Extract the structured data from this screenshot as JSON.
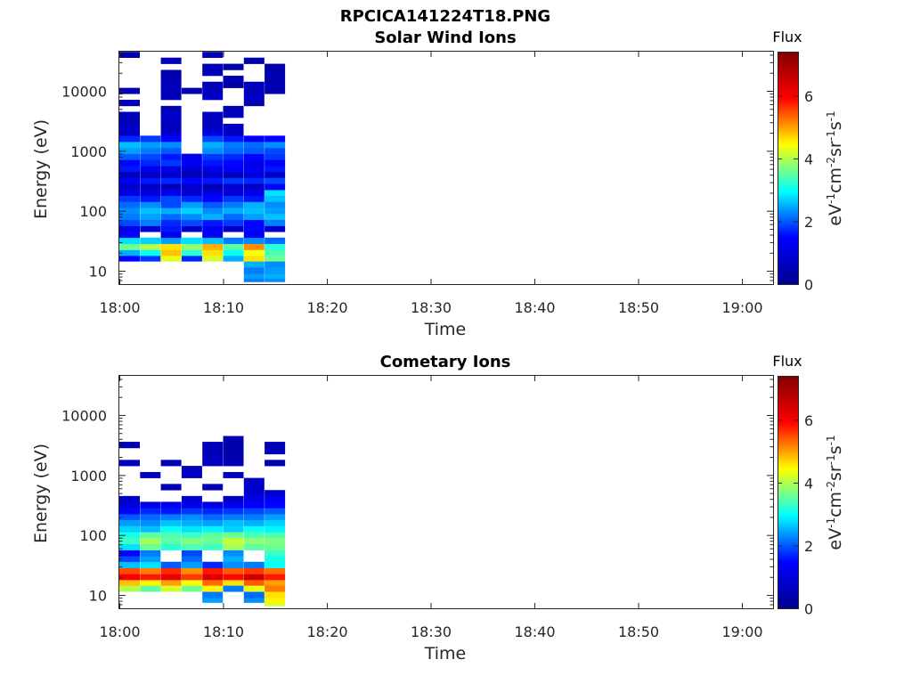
{
  "figure_title": "RPCICA141224T18.PNG",
  "colors": {
    "jet_stops": [
      "#00008f",
      "#0000ff",
      "#00ffff",
      "#ffff00",
      "#ff0000",
      "#800000"
    ]
  },
  "chart_data": [
    {
      "type": "heatmap",
      "title": "Solar Wind Ions",
      "xlabel": "Time",
      "ylabel": "Energy (eV)",
      "x_range": [
        "18:00",
        "19:03"
      ],
      "x_ticks": [
        "18:00",
        "18:10",
        "18:20",
        "18:30",
        "18:40",
        "18:50",
        "19:00"
      ],
      "y_scale": "log",
      "y_range": [
        6,
        45000
      ],
      "y_ticks": [
        10,
        100,
        1000,
        10000
      ],
      "y_tick_labels": [
        "10",
        "100",
        "1000",
        "10000"
      ],
      "colorbar": {
        "title": "Flux",
        "label": "eV-1cm-2sr-1s-1",
        "range": [
          0,
          7.4
        ],
        "ticks": [
          0,
          2,
          4,
          6
        ],
        "tick_labels": [
          "0",
          "2",
          "4",
          "6"
        ]
      },
      "time_columns": [
        "18:00",
        "18:02",
        "18:04",
        "18:06",
        "18:08",
        "18:10",
        "18:12",
        "18:14"
      ],
      "energy_bins": [
        7,
        8,
        10,
        13,
        16,
        20,
        25,
        32,
        40,
        50,
        63,
        80,
        100,
        126,
        160,
        200,
        250,
        320,
        400,
        500,
        630,
        800,
        1000,
        1260,
        1600,
        2000,
        2500,
        3200,
        4000,
        5000,
        6300,
        8000,
        10000,
        12600,
        16000,
        20000,
        25000,
        32000,
        40000
      ],
      "flux_grid": [
        [
          0,
          0,
          0,
          0,
          0,
          0,
          2.2,
          2.3
        ],
        [
          0,
          0,
          0,
          0,
          0,
          0,
          2.4,
          2.5
        ],
        [
          0,
          0,
          0,
          0,
          0,
          0,
          2.2,
          2.4
        ],
        [
          0,
          0,
          0,
          0,
          0,
          0,
          2.5,
          2.3
        ],
        [
          1.5,
          1.8,
          4.3,
          1.7,
          4.2,
          2.5,
          4.6,
          3.6
        ],
        [
          2.5,
          3.0,
          4.8,
          3.2,
          4.6,
          3.0,
          4.4,
          3.4
        ],
        [
          3.6,
          4.0,
          4.6,
          3.8,
          4.9,
          3.5,
          5.1,
          3.2
        ],
        [
          2.8,
          2.7,
          2.4,
          2.8,
          2.6,
          2.2,
          2.3,
          2.1
        ],
        [
          1.5,
          0,
          1.2,
          0,
          1.3,
          0,
          1.4,
          0
        ],
        [
          1.3,
          0.9,
          1.6,
          0.8,
          1.4,
          0.7,
          1.5,
          0.8
        ],
        [
          1.9,
          2.2,
          1.7,
          1.9,
          1.6,
          1.8,
          1.5,
          2.2
        ],
        [
          2.2,
          2.4,
          2.1,
          2.3,
          2.5,
          2.1,
          2.4,
          2.6
        ],
        [
          2.3,
          2.6,
          2.5,
          2.7,
          2.3,
          2.5,
          2.6,
          2.4
        ],
        [
          2.1,
          2.3,
          1.9,
          2.4,
          2.0,
          2.2,
          2.5,
          2.3
        ],
        [
          1.8,
          1.6,
          1.9,
          1.7,
          1.5,
          1.8,
          1.6,
          2.6
        ],
        [
          1.2,
          1.0,
          1.3,
          0.9,
          1.1,
          1.0,
          1.2,
          2.8
        ],
        [
          0.8,
          0.7,
          0.6,
          0.8,
          0.5,
          0.9,
          0.7,
          1.5
        ],
        [
          1.4,
          1.6,
          1.7,
          1.5,
          1.6,
          1.8,
          1.7,
          1.9
        ],
        [
          0.6,
          0.7,
          0.9,
          0.5,
          0.8,
          0.6,
          1.0,
          0.7
        ],
        [
          1.6,
          1.3,
          1.1,
          0.9,
          1.2,
          1.4,
          1.3,
          1.6
        ],
        [
          1.5,
          1.7,
          1.8,
          1.4,
          1.6,
          1.5,
          1.2,
          1.4
        ],
        [
          2.0,
          1.9,
          1.6,
          1.2,
          1.8,
          1.7,
          1.5,
          1.8
        ],
        [
          2.4,
          2.2,
          2.0,
          0,
          2.3,
          2.1,
          2.0,
          1.9
        ],
        [
          2.6,
          2.4,
          2.3,
          0,
          2.5,
          2.2,
          2.1,
          2.3
        ],
        [
          1.7,
          1.8,
          1.5,
          0,
          1.9,
          1.6,
          1.4,
          1.5
        ],
        [
          0.8,
          0,
          0.9,
          0,
          1.1,
          0.7,
          0,
          0
        ],
        [
          0.7,
          0,
          0.6,
          0,
          0.7,
          0.8,
          0,
          0
        ],
        [
          0.5,
          0,
          0.7,
          0,
          0.6,
          0,
          0,
          0
        ],
        [
          0.6,
          0,
          0.8,
          0,
          0.7,
          0.6,
          0,
          0
        ],
        [
          0,
          0,
          0.5,
          0,
          0,
          0.5,
          0,
          0
        ],
        [
          0.6,
          0,
          0,
          0,
          0,
          0,
          0.4,
          0
        ],
        [
          0,
          0,
          0.6,
          0,
          0.7,
          0,
          0.8,
          0
        ],
        [
          0.5,
          0,
          0.5,
          0.4,
          0.6,
          0,
          0.5,
          0.4
        ],
        [
          0,
          0,
          0.6,
          0,
          0.5,
          0.3,
          0.6,
          0.5
        ],
        [
          0,
          0,
          0.5,
          0,
          0,
          0.5,
          0,
          0.4
        ],
        [
          0,
          0,
          0.4,
          0,
          0.6,
          0,
          0,
          0.5
        ],
        [
          0,
          0,
          0,
          0,
          0.5,
          0.4,
          0,
          0.3
        ],
        [
          0,
          0,
          0.5,
          0,
          0,
          0,
          0.4,
          0
        ],
        [
          0.4,
          0,
          0,
          0,
          0.5,
          0,
          0,
          0
        ]
      ]
    },
    {
      "type": "heatmap",
      "title": "Cometary Ions",
      "xlabel": "Time",
      "ylabel": "Energy (eV)",
      "x_range": [
        "18:00",
        "19:03"
      ],
      "x_ticks": [
        "18:00",
        "18:10",
        "18:20",
        "18:30",
        "18:40",
        "18:50",
        "19:00"
      ],
      "y_scale": "log",
      "y_range": [
        6,
        45000
      ],
      "y_ticks": [
        10,
        100,
        1000,
        10000
      ],
      "y_tick_labels": [
        "10",
        "100",
        "1000",
        "10000"
      ],
      "colorbar": {
        "title": "Flux",
        "label": "eV-1cm-2sr-1s-1",
        "range": [
          0,
          7.4
        ],
        "ticks": [
          0,
          2,
          4,
          6
        ],
        "tick_labels": [
          "0",
          "2",
          "4",
          "6"
        ]
      },
      "time_columns": [
        "18:00",
        "18:02",
        "18:04",
        "18:06",
        "18:08",
        "18:10",
        "18:12",
        "18:14"
      ],
      "energy_bins": [
        7,
        8,
        10,
        13,
        16,
        20,
        25,
        32,
        40,
        50,
        63,
        80,
        100,
        126,
        160,
        200,
        250,
        320,
        400,
        500,
        630,
        800,
        1000,
        1260,
        1600,
        2000,
        2500,
        3200,
        4000,
        5000,
        6300,
        8000,
        10000,
        12600,
        16000,
        20000,
        25000,
        32000,
        40000
      ],
      "flux_grid": [
        [
          0,
          0,
          0,
          0,
          0,
          0,
          0,
          4.2
        ],
        [
          0,
          0,
          0,
          0,
          2.4,
          0,
          2.3,
          4.5
        ],
        [
          0,
          0,
          0,
          0,
          2.2,
          0,
          2.1,
          4.6
        ],
        [
          4.0,
          3.5,
          4.2,
          3.6,
          4.5,
          2.2,
          4.3,
          5.2
        ],
        [
          4.8,
          4.5,
          5.0,
          4.4,
          5.3,
          4.6,
          5.4,
          5.0
        ],
        [
          6.0,
          5.8,
          6.2,
          5.6,
          6.3,
          5.9,
          6.5,
          5.8
        ],
        [
          5.5,
          5.2,
          5.7,
          5.1,
          5.8,
          5.4,
          5.6,
          5.3
        ],
        [
          2.6,
          2.8,
          2.0,
          2.4,
          1.7,
          2.3,
          2.2,
          3.0
        ],
        [
          1.9,
          2.4,
          0,
          2.1,
          0,
          2.5,
          0,
          3.1
        ],
        [
          1.5,
          2.2,
          0,
          1.9,
          0,
          2.3,
          0,
          3.3
        ],
        [
          2.8,
          3.6,
          3.2,
          3.4,
          3.3,
          3.9,
          3.5,
          3.6
        ],
        [
          3.3,
          3.9,
          3.5,
          3.7,
          3.6,
          4.1,
          3.8,
          3.7
        ],
        [
          3.1,
          3.5,
          3.4,
          3.3,
          3.5,
          3.6,
          3.4,
          3.4
        ],
        [
          2.7,
          2.6,
          3.0,
          2.8,
          2.9,
          2.7,
          3.0,
          2.9
        ],
        [
          2.4,
          2.3,
          2.6,
          2.5,
          2.4,
          2.6,
          2.5,
          2.7
        ],
        [
          2.0,
          2.1,
          2.2,
          2.3,
          2.1,
          2.2,
          2.2,
          2.4
        ],
        [
          1.5,
          1.7,
          1.6,
          1.8,
          1.7,
          1.8,
          1.9,
          2.0
        ],
        [
          1.0,
          1.1,
          1.3,
          1.2,
          1.1,
          1.3,
          1.4,
          1.5
        ],
        [
          0.8,
          0,
          0,
          0.9,
          0,
          0.7,
          1.2,
          1.3
        ],
        [
          0,
          0,
          0,
          0,
          0,
          0,
          0.9,
          0.8
        ],
        [
          0,
          0,
          0.6,
          0,
          0.5,
          0,
          0.8,
          0
        ],
        [
          0,
          0,
          0,
          0,
          0,
          0,
          0.7,
          0
        ],
        [
          0,
          0.6,
          0,
          0.7,
          0,
          0.6,
          0,
          0
        ],
        [
          0,
          0,
          0,
          0.6,
          0,
          0,
          0,
          0
        ],
        [
          0.6,
          0,
          0.5,
          0,
          0.7,
          0.5,
          0,
          0.4
        ],
        [
          0,
          0,
          0,
          0,
          0.6,
          0.4,
          0,
          0
        ],
        [
          0,
          0,
          0,
          0,
          0.5,
          0.3,
          0,
          0.5
        ],
        [
          0.5,
          0,
          0,
          0,
          0.6,
          0.4,
          0,
          0.6
        ],
        [
          0,
          0,
          0,
          0,
          0,
          0.4,
          0,
          0
        ],
        [
          0,
          0,
          0,
          0,
          0,
          0,
          0,
          0
        ],
        [
          0,
          0,
          0,
          0,
          0,
          0,
          0,
          0
        ],
        [
          0,
          0,
          0,
          0,
          0,
          0,
          0,
          0
        ],
        [
          0,
          0,
          0,
          0,
          0,
          0,
          0,
          0
        ],
        [
          0,
          0,
          0,
          0,
          0,
          0,
          0,
          0
        ],
        [
          0,
          0,
          0,
          0,
          0,
          0,
          0,
          0
        ],
        [
          0,
          0,
          0,
          0,
          0,
          0,
          0,
          0
        ],
        [
          0,
          0,
          0,
          0,
          0,
          0,
          0,
          0
        ],
        [
          0,
          0,
          0,
          0,
          0,
          0,
          0,
          0
        ],
        [
          0,
          0,
          0,
          0,
          0,
          0,
          0,
          0
        ]
      ]
    }
  ]
}
